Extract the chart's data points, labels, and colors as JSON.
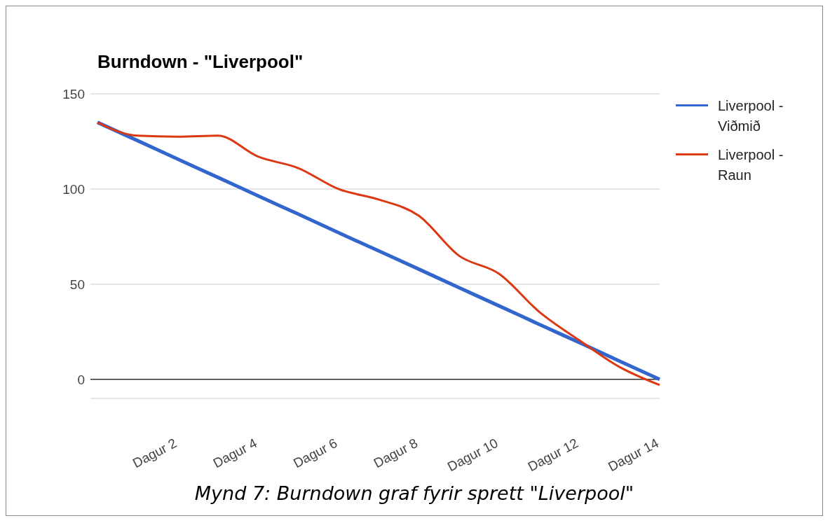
{
  "chart_data": {
    "type": "line",
    "title": "Burndown - \"Liverpool\"",
    "categories": [
      null,
      null,
      "Dagur 2",
      null,
      "Dagur 4",
      null,
      "Dagur 6",
      null,
      "Dagur 8",
      null,
      "Dagur 10",
      null,
      "Dagur 12",
      null,
      "Dagur 14"
    ],
    "series": [
      {
        "name": "Liverpool - Viðmið",
        "color": "#3366cc",
        "values": [
          135,
          125.4,
          115.7,
          106.1,
          96.4,
          86.8,
          77.1,
          67.5,
          57.9,
          48.2,
          38.6,
          28.9,
          19.3,
          9.6,
          0
        ]
      },
      {
        "name": "Liverpool - Raun",
        "color": "#dc3912",
        "values": [
          135,
          128,
          127.5,
          128,
          117,
          111,
          100,
          94.5,
          86,
          65,
          55.5,
          35.5,
          20.5,
          6.5,
          -3
        ]
      }
    ],
    "ylim": [
      -10,
      150
    ],
    "yticks": [
      0,
      50,
      100,
      150
    ],
    "grid": "y",
    "legend": "right",
    "marker": "none",
    "line_style": "solid",
    "ref_lines": [
      {
        "axis": "y",
        "value": 0,
        "color": "#333333"
      }
    ],
    "annotations": [
      "Mynd 7: Burndown graf fyrir sprett \"Liverpool\""
    ]
  }
}
